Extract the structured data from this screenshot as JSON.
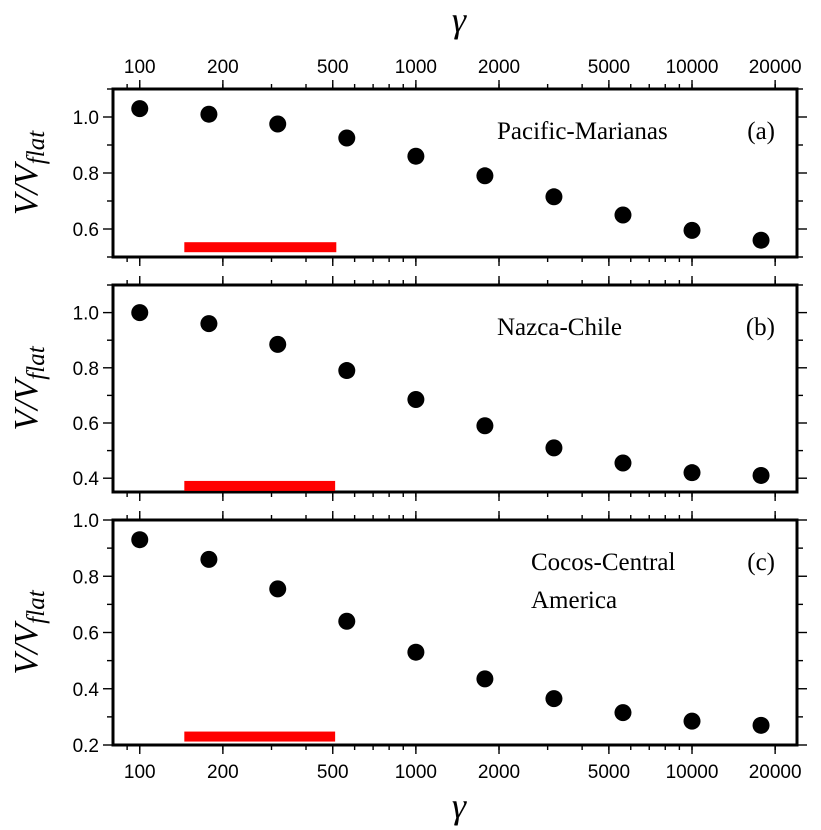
{
  "chart_data": {
    "type": "scatter",
    "x_scale": "log",
    "xlim": [
      80,
      24000
    ],
    "xlabel": "γ",
    "x_tick_labels": [
      "100",
      "200",
      "500",
      "1000",
      "2000",
      "5000",
      "10000",
      "20000"
    ],
    "x_ticks": [
      100,
      200,
      500,
      1000,
      2000,
      5000,
      10000,
      20000
    ],
    "x": [
      100,
      178,
      316,
      562,
      1000,
      1778,
      3162,
      5623,
      10000,
      17783
    ],
    "marker_color": "#000000",
    "highlight_color": "#ff0000",
    "panels": [
      {
        "id": "a",
        "annotation": "Pacific-Marianas",
        "panel_label": "(a)",
        "ylabel_main": "V/V",
        "ylabel_sub": "flat",
        "ylim": [
          0.5,
          1.1
        ],
        "y_ticks": [
          0.6,
          0.8,
          1.0
        ],
        "y_tick_labels": [
          "0.6",
          "0.8",
          "1.0"
        ],
        "values": [
          1.03,
          1.01,
          0.975,
          0.925,
          0.86,
          0.79,
          0.715,
          0.65,
          0.595,
          0.56
        ],
        "highlight_range": [
          145,
          515
        ],
        "highlight_y": 0.535
      },
      {
        "id": "b",
        "annotation": "Nazca-Chile",
        "panel_label": "(b)",
        "ylabel_main": "V/V",
        "ylabel_sub": "flat",
        "ylim": [
          0.35,
          1.1
        ],
        "y_ticks": [
          0.4,
          0.6,
          0.8,
          1.0
        ],
        "y_tick_labels": [
          "0.4",
          "0.6",
          "0.8",
          "1.0"
        ],
        "values": [
          1.0,
          0.96,
          0.885,
          0.79,
          0.685,
          0.59,
          0.51,
          0.455,
          0.42,
          0.41
        ],
        "highlight_range": [
          145,
          510
        ],
        "highlight_y": 0.372
      },
      {
        "id": "c",
        "annotation_lines": [
          "Cocos-Central",
          "America"
        ],
        "panel_label": "(c)",
        "ylabel_main": "V/V",
        "ylabel_sub": "flat",
        "ylim": [
          0.2,
          1.0
        ],
        "y_ticks": [
          0.2,
          0.4,
          0.6,
          0.8,
          1.0
        ],
        "y_tick_labels": [
          "0.2",
          "0.4",
          "0.6",
          "0.8",
          "1.0"
        ],
        "values": [
          0.93,
          0.86,
          0.755,
          0.64,
          0.53,
          0.435,
          0.365,
          0.315,
          0.285,
          0.27
        ],
        "highlight_range": [
          145,
          510
        ],
        "highlight_y": 0.23
      }
    ]
  }
}
